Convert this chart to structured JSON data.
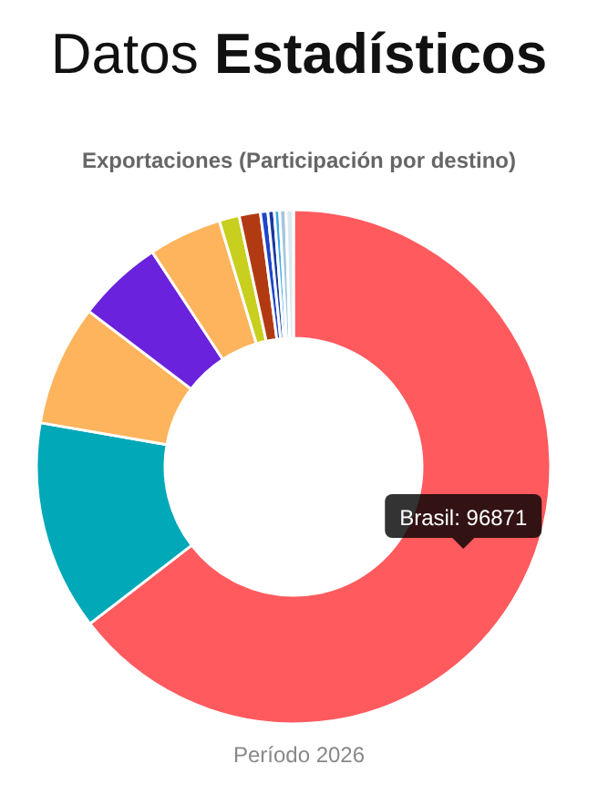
{
  "chart_data": {
    "type": "donut",
    "title": "Datos Estadísticos",
    "subtitle": "Exportaciones (Participación por destino)",
    "categories": [
      "Brasil",
      null,
      null,
      null,
      null,
      null,
      null,
      null,
      null,
      null,
      null,
      null
    ],
    "values": [
      96871,
      19800,
      11400,
      8100,
      6900,
      1900,
      2000,
      700,
      600,
      500,
      600,
      700
    ],
    "value_labels": [
      "96871",
      null,
      null,
      null,
      null,
      null,
      null,
      null,
      null,
      null,
      null,
      null
    ],
    "colors": [
      "#ff5a5e",
      "#00a8b8",
      "#fdb45c",
      "#6a22dd",
      "#fdb45c",
      "#c8cf1e",
      "#b23a12",
      "#1d46c9",
      "#1a3aa0",
      "#3aa9e0",
      "#a6c6dc",
      "#dbe9f0"
    ],
    "annotations": [
      "Período 2026"
    ]
  }
}
